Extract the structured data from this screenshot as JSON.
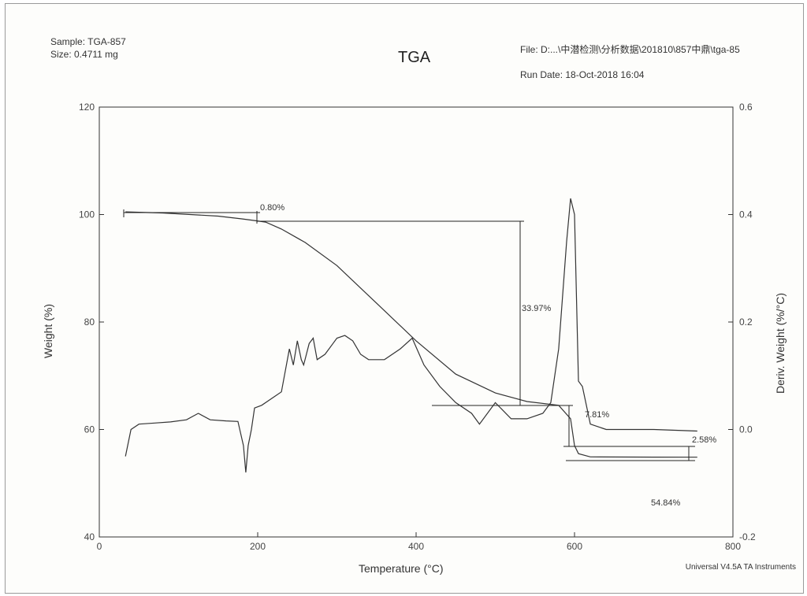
{
  "header": {
    "sample": "Sample: TGA-857",
    "size": "Size:  0.4711 mg",
    "file": "File: D:...\\中潜检测\\分析数据\\201810\\857中鼎\\tga-85",
    "run_date": "Run Date: 18-Oct-2018 16:04"
  },
  "footer": "Universal V4.5A TA Instruments",
  "chart_data": {
    "type": "line",
    "title": "TGA",
    "xlabel": "Temperature (°C)",
    "ylabel": "Weight (%)",
    "y2label": "Deriv. Weight (%/°C)",
    "xlim": [
      0,
      800
    ],
    "ylim": [
      40,
      120
    ],
    "y2lim": [
      -0.2,
      0.6
    ],
    "xticks": [
      0,
      200,
      400,
      600,
      800
    ],
    "yticks": [
      40,
      60,
      80,
      100,
      120
    ],
    "y2ticks": [
      -0.2,
      0.0,
      0.2,
      0.4,
      0.6
    ],
    "y2tick_labels": [
      "-0.2",
      "0.0",
      "0.2",
      "0.4",
      "0.6"
    ],
    "grid": false,
    "series": [
      {
        "axis": "left",
        "x": [
          33,
          80,
          150,
          180,
          195,
          210,
          230,
          260,
          300,
          350,
          400,
          450,
          500,
          540,
          580,
          595,
          600,
          605,
          620,
          700,
          755
        ],
        "values": [
          100.5,
          100.3,
          99.7,
          99.2,
          98.9,
          98.6,
          97.3,
          94.8,
          90.5,
          83.5,
          76.5,
          70.3,
          66.8,
          65.2,
          64.5,
          62.0,
          57.0,
          55.5,
          54.9,
          54.85,
          54.84
        ]
      },
      {
        "axis": "right",
        "x": [
          33,
          40,
          50,
          70,
          90,
          110,
          125,
          140,
          160,
          175,
          182,
          185,
          188,
          192,
          196,
          205,
          220,
          230,
          240,
          245,
          250,
          255,
          258,
          265,
          270,
          275,
          285,
          295,
          300,
          310,
          320,
          330,
          340,
          360,
          380,
          395,
          410,
          430,
          450,
          470,
          480,
          500,
          520,
          540,
          560,
          570,
          580,
          590,
          595,
          600,
          605,
          610,
          620,
          640,
          700,
          755
        ],
        "values": [
          -0.05,
          0.0,
          0.01,
          0.012,
          0.014,
          0.018,
          0.03,
          0.018,
          0.016,
          0.015,
          -0.03,
          -0.08,
          -0.03,
          0.0,
          0.04,
          0.045,
          0.06,
          0.07,
          0.15,
          0.12,
          0.165,
          0.13,
          0.12,
          0.16,
          0.17,
          0.13,
          0.14,
          0.16,
          0.17,
          0.175,
          0.165,
          0.14,
          0.13,
          0.13,
          0.15,
          0.17,
          0.12,
          0.08,
          0.05,
          0.03,
          0.01,
          0.05,
          0.02,
          0.02,
          0.03,
          0.05,
          0.15,
          0.35,
          0.43,
          0.4,
          0.09,
          0.08,
          0.01,
          0.0,
          0.0,
          -0.003
        ]
      }
    ],
    "annotations": [
      "0.80%",
      "33.97%",
      "7.81%",
      "2.58%",
      "54.84%"
    ]
  }
}
